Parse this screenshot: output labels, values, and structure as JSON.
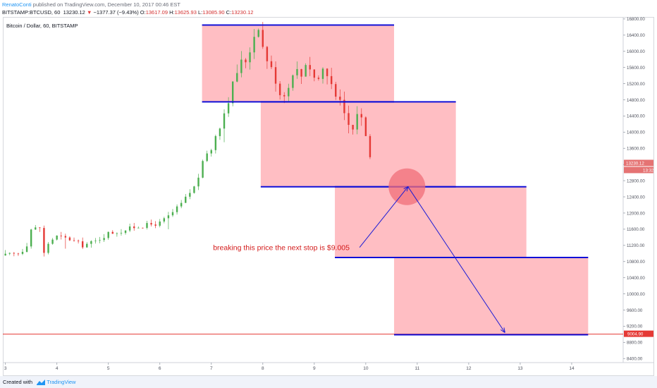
{
  "header": {
    "author": "RenatoConti",
    "published_text": "published on TradingView.com, December 10, 2017 00:46 EST",
    "symbol_line": "BITSTAMP:BTCUSD, 60",
    "last": "13230.12",
    "change": "−1377.37 (−9.43%)",
    "o_label": "O:",
    "o_value": "13617.09",
    "h_label": "H:",
    "h_value": "13625.93",
    "l_label": "L:",
    "l_value": "13085.90",
    "c_label": "C:",
    "c_value": "13230.12"
  },
  "symbol_title": "Bitcoin / Dollar, 60, BITSTAMP",
  "footer": {
    "created_with": "Created with",
    "brand": "TradingView"
  },
  "colors": {
    "up": "#4caf50",
    "down": "#e53935",
    "zone_fill": "#ffb3b8",
    "zone_line": "#1010d8",
    "circle": "#f06e78",
    "arrow": "#1a1ad6",
    "support": "#e53935",
    "annotation": "#d31b1b",
    "price_tag": "#e57373"
  },
  "chart_data": {
    "type": "candlestick",
    "title": "Bitcoin / Dollar, 60, BITSTAMP",
    "x_ticks": [
      "3",
      "4",
      "5",
      "6",
      "7",
      "8",
      "9",
      "10",
      "11",
      "12",
      "13",
      "14"
    ],
    "y_ticks": [
      "16800.00",
      "16400.00",
      "16000.00",
      "15600.00",
      "15200.00",
      "14800.00",
      "14400.00",
      "14000.00",
      "13600.00",
      "13200.00",
      "12800.00",
      "12400.00",
      "12000.00",
      "11600.00",
      "11200.00",
      "10800.00",
      "10400.00",
      "10000.00",
      "9600.00",
      "9200.00",
      "8800.00",
      "8400.00"
    ],
    "ylim": [
      8300,
      16850
    ],
    "xlim": [
      2.95,
      15.0
    ],
    "price_path": [
      [
        3.0,
        10950
      ],
      [
        3.25,
        11000
      ],
      [
        3.4,
        11150
      ],
      [
        3.5,
        11600
      ],
      [
        3.7,
        11650
      ],
      [
        3.75,
        11000
      ],
      [
        3.85,
        11300
      ],
      [
        4.0,
        11420
      ],
      [
        4.25,
        11350
      ],
      [
        4.5,
        11200
      ],
      [
        4.75,
        11300
      ],
      [
        5.0,
        11500
      ],
      [
        5.25,
        11550
      ],
      [
        5.5,
        11650
      ],
      [
        5.75,
        11700
      ],
      [
        6.0,
        11750
      ],
      [
        6.2,
        11950
      ],
      [
        6.4,
        12200
      ],
      [
        6.55,
        12450
      ],
      [
        6.7,
        12700
      ],
      [
        6.8,
        13100
      ],
      [
        6.9,
        13500
      ],
      [
        7.0,
        13550
      ],
      [
        7.1,
        14000
      ],
      [
        7.2,
        14300
      ],
      [
        7.35,
        14900
      ],
      [
        7.45,
        15300
      ],
      [
        7.55,
        15700
      ],
      [
        7.7,
        15800
      ],
      [
        7.8,
        16300
      ],
      [
        7.92,
        16650
      ],
      [
        8.0,
        16100
      ],
      [
        8.1,
        15750
      ],
      [
        8.25,
        15300
      ],
      [
        8.35,
        14900
      ],
      [
        8.5,
        15100
      ],
      [
        8.6,
        15600
      ],
      [
        8.75,
        15400
      ],
      [
        8.85,
        15800
      ],
      [
        8.95,
        15500
      ],
      [
        9.05,
        15200
      ],
      [
        9.15,
        15600
      ],
      [
        9.3,
        15300
      ],
      [
        9.45,
        14900
      ],
      [
        9.55,
        14500
      ],
      [
        9.65,
        14200
      ],
      [
        9.75,
        14050
      ],
      [
        9.85,
        14600
      ],
      [
        9.95,
        14200
      ],
      [
        10.05,
        13700
      ],
      [
        10.1,
        13230
      ]
    ],
    "zones": [
      {
        "x0": 6.82,
        "x1": 10.55,
        "y0": 14750,
        "y1": 16650
      },
      {
        "x0": 7.96,
        "x1": 11.75,
        "y0": 12650,
        "y1": 14750
      },
      {
        "x0": 9.4,
        "x1": 13.12,
        "y0": 10900,
        "y1": 12650
      },
      {
        "x0": 10.55,
        "x1": 14.32,
        "y0": 8990,
        "y1": 10900
      }
    ],
    "support_line": {
      "price": 9004.9,
      "label": "9004.90"
    },
    "circle": {
      "x": 10.8,
      "y": 12650
    },
    "arrows": [
      {
        "from": [
          9.88,
          11150
        ],
        "to": [
          10.82,
          12650
        ]
      },
      {
        "from": [
          10.82,
          12650
        ],
        "to": [
          12.7,
          9050
        ]
      }
    ],
    "annotation": {
      "text": "breaking this price the next stop is $9.005",
      "x": 8.36,
      "y": 11150
    },
    "last_price_tag": {
      "price": "13230.12",
      "time": "13:32",
      "y": 13230
    }
  }
}
